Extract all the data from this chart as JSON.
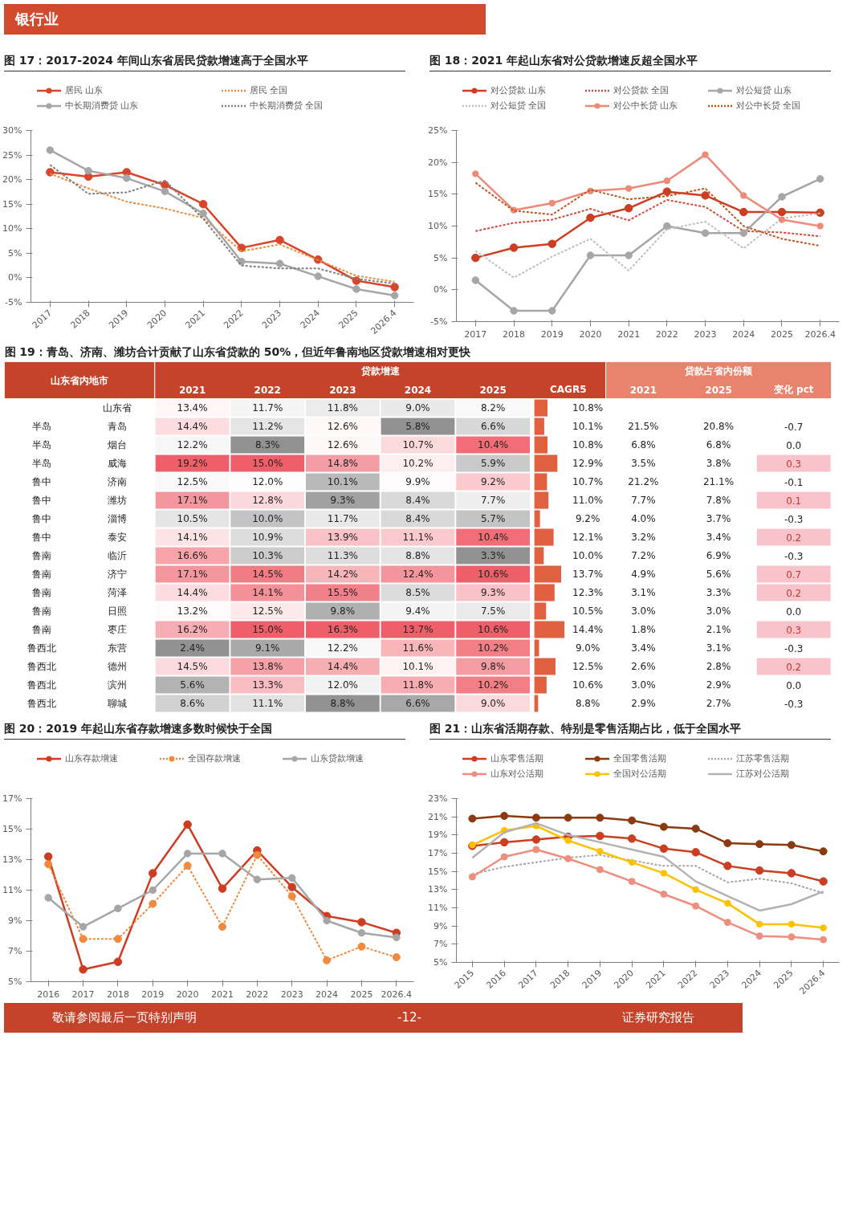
{
  "chart_data": [
    {
      "type": "line",
      "title": "图 17：2017-2024 年间山东省居民贷款增速高于全国水平",
      "annotations": [
        "银行业"
      ],
      "categories": [
        "2017",
        "2018",
        "2019",
        "2020",
        "2021",
        "2022",
        "2023",
        "2024",
        "2025",
        "2026.4"
      ],
      "ylim": [
        -5,
        30
      ],
      "yticks": [
        {
          "value": -5,
          "label": "-5%"
        },
        {
          "value": 0,
          "label": "0%"
        },
        {
          "value": 5,
          "label": "5%"
        },
        {
          "value": 10,
          "label": "10%"
        },
        {
          "value": 15,
          "label": "15%"
        },
        {
          "value": 20,
          "label": "20%"
        },
        {
          "value": 25,
          "label": "25%"
        },
        {
          "value": 30,
          "label": "30%"
        }
      ],
      "legend": "top",
      "series": [
        {
          "name": "居民 山东",
          "color": "#d9452b",
          "marker": "circle",
          "line_style": "solid",
          "values": [
            21.5,
            20.6,
            21.5,
            18.9,
            15.0,
            6.1,
            7.7,
            3.7,
            -0.6,
            -1.9
          ]
        },
        {
          "name": "居民 全国",
          "color": "#f08a3c",
          "line_style": "dotted",
          "values": [
            21.2,
            18.2,
            15.5,
            14.1,
            12.2,
            5.4,
            6.8,
            3.6,
            0.4,
            -0.8
          ]
        },
        {
          "name": "中长期消费贷 山东",
          "color": "#a6a6a6",
          "marker": "circle",
          "line_style": "solid",
          "values": [
            26.0,
            21.8,
            20.3,
            17.6,
            13.1,
            3.3,
            2.9,
            0.3,
            -2.3,
            -3.6
          ]
        },
        {
          "name": "中长期消费贷 全国",
          "color": "#7f7f7f",
          "line_style": "dotted",
          "values": [
            23.0,
            17.1,
            17.4,
            19.8,
            12.0,
            2.5,
            1.9,
            1.9,
            -0.2,
            -1.2
          ]
        }
      ]
    },
    {
      "type": "line",
      "title": "图 18：2021 年起山东省对公贷款增速反超全国水平",
      "categories": [
        "2017",
        "2018",
        "2019",
        "2020",
        "2021",
        "2022",
        "2023",
        "2024",
        "2025",
        "2026.4"
      ],
      "ylim": [
        -5,
        25
      ],
      "yticks": [
        {
          "value": -5,
          "label": "-5%"
        },
        {
          "value": 0,
          "label": "0%"
        },
        {
          "value": 5,
          "label": "5%"
        },
        {
          "value": 10,
          "label": "10%"
        },
        {
          "value": 15,
          "label": "15%"
        },
        {
          "value": 20,
          "label": "20%"
        },
        {
          "value": 25,
          "label": "25%"
        }
      ],
      "legend": "top",
      "series": [
        {
          "name": "对公贷款 山东",
          "color": "#cc3d22",
          "marker": "circle",
          "line_style": "solid",
          "values": [
            5.0,
            6.6,
            7.2,
            11.3,
            12.8,
            15.4,
            14.8,
            12.2,
            12.2,
            12.1
          ]
        },
        {
          "name": "对公贷款 全国",
          "color": "#d6493a",
          "line_style": "dotted",
          "values": [
            9.2,
            10.5,
            11.0,
            12.7,
            10.9,
            14.1,
            13.0,
            9.2,
            9.0,
            8.4
          ]
        },
        {
          "name": "对公短贷 山东",
          "color": "#a6a6a6",
          "marker": "circle",
          "line_style": "solid",
          "values": [
            1.5,
            -3.3,
            -3.3,
            5.4,
            5.4,
            10.0,
            8.9,
            8.9,
            14.6,
            17.4
          ]
        },
        {
          "name": "对公短贷 全国",
          "color": "#bfbfbf",
          "line_style": "dotted",
          "values": [
            6.1,
            1.9,
            5.2,
            8.0,
            3.0,
            9.5,
            10.7,
            6.5,
            11.2,
            12.0
          ]
        },
        {
          "name": "对公中长贷 山东",
          "color": "#ee8a7a",
          "marker": "circle",
          "line_style": "solid",
          "values": [
            18.2,
            12.5,
            13.6,
            15.5,
            15.9,
            17.1,
            21.2,
            14.8,
            11.0,
            10.0
          ]
        },
        {
          "name": "对公中长贷 全国",
          "color": "#c0561c",
          "line_style": "dotted",
          "values": [
            16.8,
            12.4,
            11.8,
            15.7,
            14.2,
            14.7,
            15.9,
            10.0,
            8.0,
            6.9
          ]
        }
      ]
    },
    {
      "type": "heatmap",
      "title": "图 19：青岛、济南、潍坊合计贡献了山东省贷款的 50%，但近年鲁南地区贷款增速相对更快",
      "annotations": [
        "山东省内地市",
        "贷款增速",
        "贷款占省内份额"
      ],
      "categories": [
        "2021",
        "2022",
        "2023",
        "2024",
        "2025",
        "CAGR5",
        "2021",
        "2025",
        "变化 pct"
      ],
      "y_categories": [
        "山东省",
        "青岛",
        "烟台",
        "威海",
        "济南",
        "潍坊",
        "淄博",
        "泰安",
        "临沂",
        "济宁",
        "菏泽",
        "日照",
        "枣庄",
        "东营",
        "德州",
        "滨州",
        "聊城"
      ],
      "y2_categories": [
        null,
        "半岛",
        "半岛",
        "半岛",
        "鲁中",
        "鲁中",
        "鲁中",
        "鲁中",
        "鲁南",
        "鲁南",
        "鲁南",
        "鲁南",
        "鲁南",
        "鲁西北",
        "鲁西北",
        "鲁西北",
        "鲁西北"
      ],
      "cells": [
        [
          13.4,
          11.7,
          11.8,
          9.0,
          8.2,
          10.8,
          null,
          null,
          null
        ],
        [
          14.4,
          11.2,
          12.6,
          5.8,
          6.6,
          10.1,
          21.5,
          20.8,
          -0.7
        ],
        [
          12.2,
          8.3,
          12.6,
          10.7,
          10.4,
          10.8,
          6.8,
          6.8,
          0.0
        ],
        [
          19.2,
          15.0,
          14.8,
          10.2,
          5.9,
          12.9,
          3.5,
          3.8,
          0.3
        ],
        [
          12.5,
          12.0,
          10.1,
          9.9,
          9.2,
          10.7,
          21.2,
          21.1,
          -0.1
        ],
        [
          17.1,
          12.8,
          9.3,
          8.4,
          7.7,
          11.0,
          7.7,
          7.8,
          0.1
        ],
        [
          10.5,
          10.0,
          11.7,
          8.4,
          5.7,
          9.2,
          4.0,
          3.7,
          -0.3
        ],
        [
          14.1,
          10.9,
          13.9,
          11.1,
          10.4,
          12.1,
          3.2,
          3.4,
          0.2
        ],
        [
          16.6,
          10.3,
          11.3,
          8.8,
          3.3,
          10.0,
          7.2,
          6.9,
          -0.3
        ],
        [
          17.1,
          14.5,
          14.2,
          12.4,
          10.6,
          13.7,
          4.9,
          5.6,
          0.7
        ],
        [
          14.4,
          14.1,
          15.5,
          8.5,
          9.3,
          12.3,
          3.1,
          3.3,
          0.2
        ],
        [
          13.2,
          12.5,
          9.8,
          9.4,
          7.5,
          10.5,
          3.0,
          3.0,
          0.0
        ],
        [
          16.2,
          15.0,
          16.3,
          13.7,
          10.6,
          14.4,
          1.8,
          2.1,
          0.3
        ],
        [
          2.4,
          9.1,
          12.2,
          11.6,
          10.2,
          9.0,
          3.4,
          3.1,
          -0.3
        ],
        [
          14.5,
          13.8,
          14.4,
          10.1,
          9.8,
          12.5,
          2.6,
          2.8,
          0.2
        ],
        [
          5.6,
          13.3,
          12.0,
          11.8,
          10.2,
          10.6,
          3.0,
          2.9,
          0.0
        ],
        [
          8.6,
          11.1,
          8.8,
          6.6,
          9.0,
          8.8,
          2.9,
          2.7,
          -0.3
        ]
      ],
      "cell_labels": [
        [
          "13.4%",
          "11.7%",
          "11.8%",
          "9.0%",
          "8.2%",
          "10.8%",
          null,
          null,
          null
        ],
        [
          "14.4%",
          "11.2%",
          "12.6%",
          "5.8%",
          "6.6%",
          "10.1%",
          "21.5%",
          "20.8%",
          "-0.7"
        ],
        [
          "12.2%",
          "8.3%",
          "12.6%",
          "10.7%",
          "10.4%",
          "10.8%",
          "6.8%",
          "6.8%",
          "0.0"
        ],
        [
          "19.2%",
          "15.0%",
          "14.8%",
          "10.2%",
          "5.9%",
          "12.9%",
          "3.5%",
          "3.8%",
          "0.3"
        ],
        [
          "12.5%",
          "12.0%",
          "10.1%",
          "9.9%",
          "9.2%",
          "10.7%",
          "21.2%",
          "21.1%",
          "-0.1"
        ],
        [
          "17.1%",
          "12.8%",
          "9.3%",
          "8.4%",
          "7.7%",
          "11.0%",
          "7.7%",
          "7.8%",
          "0.1"
        ],
        [
          "10.5%",
          "10.0%",
          "11.7%",
          "8.4%",
          "5.7%",
          "9.2%",
          "4.0%",
          "3.7%",
          "-0.3"
        ],
        [
          "14.1%",
          "10.9%",
          "13.9%",
          "11.1%",
          "10.4%",
          "12.1%",
          "3.2%",
          "3.4%",
          "0.2"
        ],
        [
          "16.6%",
          "10.3%",
          "11.3%",
          "8.8%",
          "3.3%",
          "10.0%",
          "7.2%",
          "6.9%",
          "-0.3"
        ],
        [
          "17.1%",
          "14.5%",
          "14.2%",
          "12.4%",
          "10.6%",
          "13.7%",
          "4.9%",
          "5.6%",
          "0.7"
        ],
        [
          "14.4%",
          "14.1%",
          "15.5%",
          "8.5%",
          "9.3%",
          "12.3%",
          "3.1%",
          "3.3%",
          "0.2"
        ],
        [
          "13.2%",
          "12.5%",
          "9.8%",
          "9.4%",
          "7.5%",
          "10.5%",
          "3.0%",
          "3.0%",
          "0.0"
        ],
        [
          "16.2%",
          "15.0%",
          "16.3%",
          "13.7%",
          "10.6%",
          "14.4%",
          "1.8%",
          "2.1%",
          "0.3"
        ],
        [
          "2.4%",
          "9.1%",
          "12.2%",
          "11.6%",
          "10.2%",
          "9.0%",
          "3.4%",
          "3.1%",
          "-0.3"
        ],
        [
          "14.5%",
          "13.8%",
          "14.4%",
          "10.1%",
          "9.8%",
          "12.5%",
          "2.6%",
          "2.8%",
          "0.2"
        ],
        [
          "5.6%",
          "13.3%",
          "12.0%",
          "11.8%",
          "10.2%",
          "10.6%",
          "3.0%",
          "2.9%",
          "0.0"
        ],
        [
          "8.6%",
          "11.1%",
          "8.8%",
          "6.6%",
          "9.0%",
          "8.8%",
          "2.9%",
          "2.7%",
          "-0.3"
        ]
      ]
    },
    {
      "type": "line",
      "title": "图 20：2019 年起山东省存款增速多数时候快于全国",
      "categories": [
        "2016",
        "2017",
        "2018",
        "2019",
        "2020",
        "2021",
        "2022",
        "2023",
        "2024",
        "2025",
        "2026.4"
      ],
      "ylim": [
        5,
        17
      ],
      "yticks": [
        {
          "value": 5,
          "label": "5%"
        },
        {
          "value": 7,
          "label": "7%"
        },
        {
          "value": 9,
          "label": "9%"
        },
        {
          "value": 11,
          "label": "11%"
        },
        {
          "value": 13,
          "label": "13%"
        },
        {
          "value": 15,
          "label": "15%"
        },
        {
          "value": 17,
          "label": "17%"
        }
      ],
      "legend": "top",
      "series": [
        {
          "name": "山东存款增速",
          "color": "#cc3d22",
          "marker": "circle",
          "line_style": "solid",
          "values": [
            13.2,
            5.8,
            6.3,
            12.1,
            15.3,
            11.1,
            13.6,
            11.2,
            9.3,
            8.9,
            8.2
          ]
        },
        {
          "name": "全国存款增速",
          "color": "#f08a3c",
          "marker": "circle",
          "line_style": "dotted",
          "values": [
            12.7,
            7.8,
            7.8,
            10.1,
            12.6,
            8.6,
            13.3,
            10.6,
            6.4,
            7.3,
            6.6
          ]
        },
        {
          "name": "山东贷款增速",
          "color": "#a6a6a6",
          "marker": "circle",
          "line_style": "solid",
          "values": [
            10.5,
            8.6,
            9.8,
            11.0,
            13.4,
            13.4,
            11.7,
            11.8,
            9.0,
            8.2,
            7.9
          ]
        }
      ]
    },
    {
      "type": "line",
      "title": "图 21：山东省活期存款、特别是零售活期占比，低于全国水平",
      "annotations": [
        "敬请参阅最后一页特别声明",
        "-12-",
        "证券研究报告"
      ],
      "categories": [
        "2015",
        "2016",
        "2017",
        "2018",
        "2019",
        "2020",
        "2021",
        "2022",
        "2023",
        "2024",
        "2025",
        "2026.4"
      ],
      "ylim": [
        5,
        23
      ],
      "yticks": [
        {
          "value": 5,
          "label": "5%"
        },
        {
          "value": 7,
          "label": "7%"
        },
        {
          "value": 9,
          "label": "9%"
        },
        {
          "value": 11,
          "label": "11%"
        },
        {
          "value": 13,
          "label": "13%"
        },
        {
          "value": 15,
          "label": "15%"
        },
        {
          "value": 17,
          "label": "17%"
        },
        {
          "value": 19,
          "label": "19%"
        },
        {
          "value": 21,
          "label": "21%"
        },
        {
          "value": 23,
          "label": "23%"
        }
      ],
      "legend": "top",
      "series": [
        {
          "name": "山东零售活期",
          "color": "#cc3d22",
          "marker": "circle",
          "line_style": "solid",
          "values": [
            17.8,
            18.2,
            18.5,
            18.8,
            18.9,
            18.6,
            17.5,
            17.1,
            15.6,
            15.1,
            14.8,
            13.9
          ]
        },
        {
          "name": "全国零售活期",
          "color": "#8b3a0f",
          "marker": "circle",
          "line_style": "solid",
          "values": [
            20.8,
            21.1,
            20.9,
            20.9,
            20.9,
            20.6,
            19.9,
            19.7,
            18.1,
            18.0,
            17.9,
            17.2
          ]
        },
        {
          "name": "江苏零售活期",
          "color": "#a6a6a6",
          "line_style": "dotted",
          "values": [
            14.7,
            15.5,
            16.0,
            16.5,
            16.8,
            16.2,
            15.6,
            15.6,
            13.8,
            14.2,
            13.7,
            12.6
          ]
        },
        {
          "name": "山东对公活期",
          "color": "#ef8e7e",
          "marker": "circle",
          "line_style": "solid",
          "values": [
            14.4,
            16.6,
            17.4,
            16.4,
            15.2,
            13.9,
            12.5,
            11.2,
            9.4,
            7.9,
            7.8,
            7.5
          ]
        },
        {
          "name": "全国对公活期",
          "color": "#ffc000",
          "marker": "circle",
          "line_style": "solid",
          "values": [
            17.9,
            19.5,
            20.0,
            18.4,
            17.2,
            16.0,
            14.8,
            13.0,
            11.5,
            9.2,
            9.2,
            8.8
          ]
        },
        {
          "name": "江苏对公活期",
          "color": "#b3b3b3",
          "line_style": "solid",
          "values": [
            16.5,
            19.3,
            20.3,
            19.0,
            18.2,
            17.4,
            16.6,
            13.9,
            12.3,
            10.7,
            11.4,
            12.8
          ]
        }
      ]
    }
  ]
}
